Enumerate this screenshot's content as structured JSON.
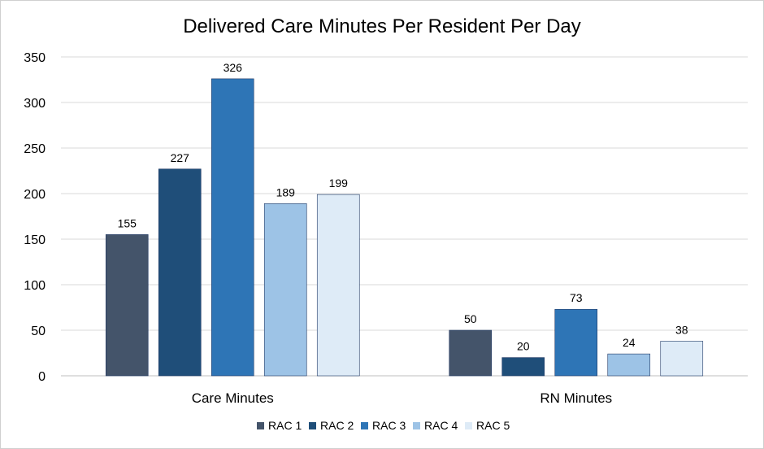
{
  "chart_data": {
    "type": "bar",
    "title": "Delivered Care Minutes Per Resident Per Day",
    "xlabel": "",
    "ylabel": "",
    "categories": [
      "Care Minutes",
      "RN Minutes"
    ],
    "series": [
      {
        "name": "RAC 1",
        "color": "#44546a",
        "values": [
          155,
          50
        ]
      },
      {
        "name": "RAC 2",
        "color": "#1f4e79",
        "values": [
          227,
          20
        ]
      },
      {
        "name": "RAC 3",
        "color": "#2e75b6",
        "values": [
          326,
          73
        ]
      },
      {
        "name": "RAC 4",
        "color": "#9dc3e6",
        "values": [
          189,
          24
        ]
      },
      {
        "name": "RAC 5",
        "color": "#deebf7",
        "values": [
          199,
          38
        ]
      }
    ],
    "ylim": [
      0,
      350
    ],
    "yticks": [
      0,
      50,
      100,
      150,
      200,
      250,
      300,
      350
    ],
    "grid": true,
    "legend_position": "bottom",
    "data_labels": true
  }
}
